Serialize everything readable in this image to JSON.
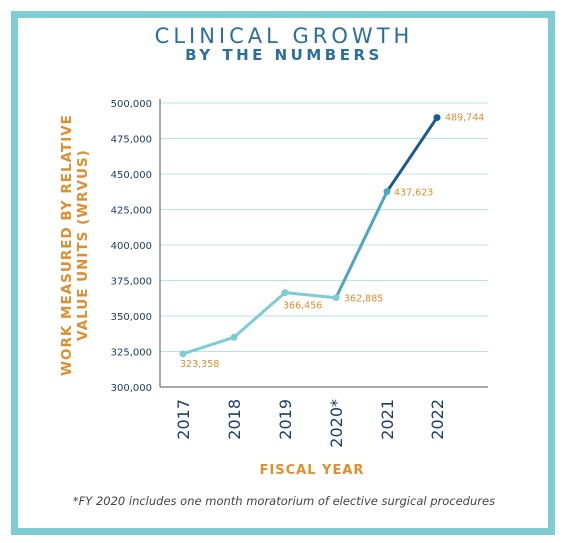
{
  "title": "CLINICAL GROWTH",
  "subtitle": "BY THE NUMBERS",
  "footnote": "*FY 2020 includes one month moratorium of elective surgical procedures",
  "colors": {
    "border": "#7dcdd3",
    "title": "#2c6e9d",
    "axis_label": "#e08e2e",
    "tick_text": "#1e3f66",
    "line_light": "#7dcdd3",
    "line_mid": "#4fa6c4",
    "line_dark": "#1a5c8a",
    "grid": "#b9e3e8"
  },
  "chart_data": {
    "type": "line",
    "xlabel": "FISCAL YEAR",
    "ylabel": "WORK MEASURED BY RELATIVE VALUE UNITS (WRVUS)",
    "categories": [
      "2017",
      "2018",
      "2019",
      "2020*",
      "2021",
      "2022"
    ],
    "values": [
      323358,
      335000,
      366456,
      362885,
      437623,
      489744
    ],
    "data_labels": [
      "323,358",
      null,
      "366,456",
      "362,885",
      "437,623",
      "489,744"
    ],
    "ylim": [
      300000,
      500000
    ],
    "yticks": [
      300000,
      325000,
      350000,
      375000,
      400000,
      425000,
      450000,
      475000,
      500000
    ],
    "ytick_labels": [
      "300,000",
      "325,000",
      "350,000",
      "375,000",
      "400,000",
      "425,000",
      "450,000",
      "475,000",
      "500,000"
    ],
    "grid": true
  }
}
